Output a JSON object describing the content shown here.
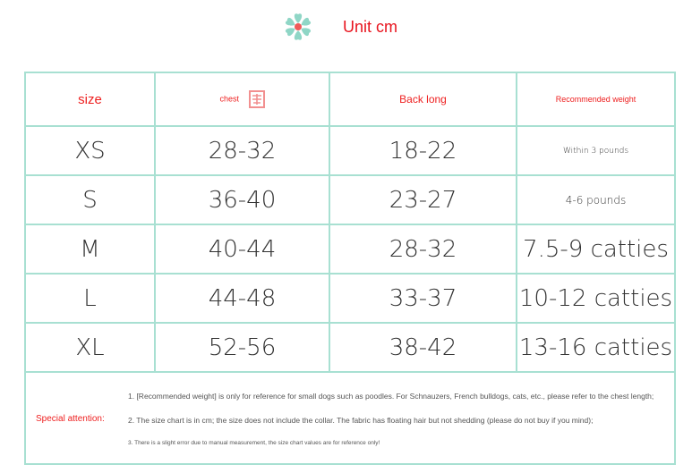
{
  "header": {
    "title": "Unit cm",
    "icon": "flower-icon",
    "accent": "#e8141e",
    "border": "#a8e0d2"
  },
  "table": {
    "headers": [
      "size",
      "chest",
      "Back long",
      "Recommended weight"
    ],
    "rows": [
      [
        "XS",
        "28-32",
        "18-22",
        "Within 3 pounds"
      ],
      [
        "S",
        "36-40",
        "23-27",
        "4-6 pounds"
      ],
      [
        "M",
        "40-44",
        "28-32",
        "7.5-9 catties"
      ],
      [
        "L",
        "44-48",
        "33-37",
        "10-12 catties"
      ],
      [
        "XL",
        "52-56",
        "38-42",
        "13-16 catties"
      ]
    ]
  },
  "notes": {
    "label": "Special attention:",
    "items": [
      "1. [Recommended weight] is only for reference for small dogs such as poodles. For Schnauzers, French bulldogs, cats, etc., please refer to the chest length;",
      "2. The size chart is in cm; the size does not include the collar. The fabric has floating hair but not shedding (please do not buy if you mind);",
      "3. There is a slight error due to manual measurement, the size chart values are for reference only!"
    ]
  }
}
